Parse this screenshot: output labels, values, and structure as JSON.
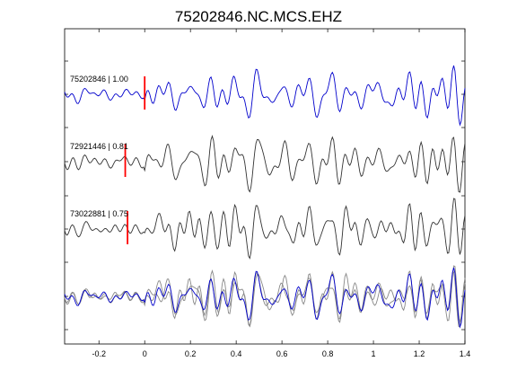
{
  "chart_data": {
    "type": "line",
    "title": "75202846.NC.MCS.EHZ",
    "xlabel": "",
    "ylabel": "",
    "xlim": [
      -0.35,
      1.4
    ],
    "grid": false,
    "x_ticks": [
      -0.2,
      0,
      0.2,
      0.4,
      0.6,
      0.8,
      1,
      1.2,
      1.4
    ],
    "x_tick_labels": [
      "-0.2",
      "0",
      "0.2",
      "0.4",
      "0.6",
      "0.8",
      "1",
      "1.2",
      "1.4"
    ],
    "colors": {
      "blue": "#0000cc",
      "dark": "#333333",
      "light": "#888888",
      "pick": "#ff0000"
    },
    "traces": [
      {
        "label": "75202846 | 1.00",
        "color": "#0000cc",
        "pick_time": 0.0,
        "seed": 11,
        "amp": 1.0
      },
      {
        "label": "72921446 | 0.81",
        "color": "#333333",
        "pick_time": -0.085,
        "seed": 23,
        "amp": 1.05
      },
      {
        "label": "73022881 | 0.75",
        "color": "#333333",
        "pick_time": -0.075,
        "seed": 37,
        "amp": 1.0
      }
    ],
    "stack": {
      "series": [
        {
          "color": "#888888",
          "seed": 37
        },
        {
          "color": "#888888",
          "seed": 23
        },
        {
          "color": "#0000cc",
          "seed": 11
        }
      ]
    }
  }
}
